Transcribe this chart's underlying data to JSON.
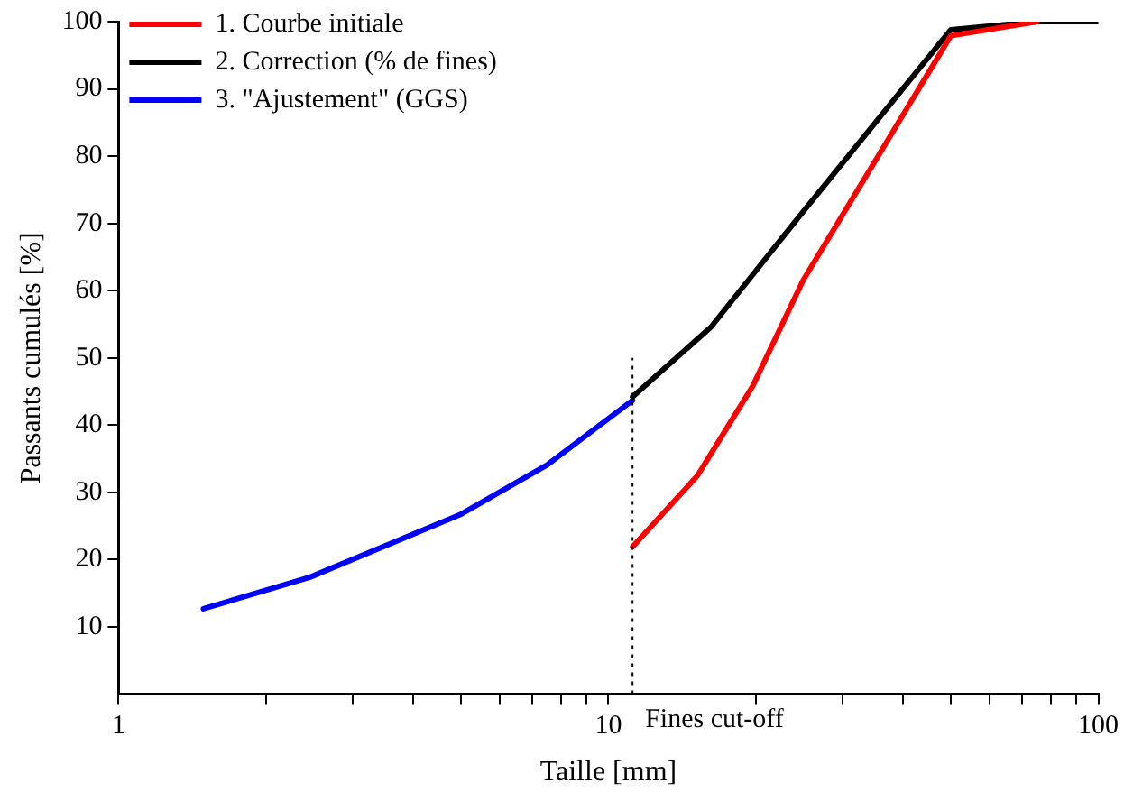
{
  "chart_data": {
    "type": "line",
    "xlabel": "Taille [mm]",
    "ylabel": "Passants cumulés [%]",
    "log": "x",
    "legend": "top left",
    "grid": false,
    "marker": "none",
    "line_style": "solid",
    "xlim": [
      1,
      100
    ],
    "xticks": [
      1,
      {
        "value": 2,
        "label": null
      },
      {
        "value": 3,
        "label": null
      },
      {
        "value": 4,
        "label": null
      },
      {
        "value": 5,
        "label": null
      },
      {
        "value": 6,
        "label": null
      },
      {
        "value": 7,
        "label": null
      },
      {
        "value": 8,
        "label": null
      },
      {
        "value": 9,
        "label": null
      },
      10,
      {
        "value": 20,
        "label": null
      },
      {
        "value": 30,
        "label": null
      },
      {
        "value": 40,
        "label": null
      },
      {
        "value": 50,
        "label": null
      },
      {
        "value": 60,
        "label": null
      },
      {
        "value": 70,
        "label": null
      },
      {
        "value": 80,
        "label": null
      },
      {
        "value": 90,
        "label": null
      },
      100
    ],
    "ylim": [
      0,
      100
    ],
    "yticks": [
      10,
      20,
      30,
      40,
      50,
      60,
      70,
      80,
      90,
      100
    ],
    "series": [
      {
        "name": "1. Courbe initiale",
        "color": "#ff0000",
        "x": [
          11.2,
          15.2,
          19.7,
          25,
          50,
          75
        ],
        "values": [
          21.9,
          32.5,
          45.8,
          61.6,
          97.9,
          100
        ]
      },
      {
        "name": "2. Correction (% de fines)",
        "color": "#000000",
        "x": [
          11.2,
          16.2,
          25,
          50,
          75,
          100
        ],
        "values": [
          44.2,
          54.6,
          71.8,
          98.8,
          100,
          100
        ]
      },
      {
        "name": "3. \"Ajustement\" (GGS)",
        "color": "#0000ff",
        "x": [
          1.49,
          2.46,
          4.98,
          7.5,
          11.2
        ],
        "values": [
          12.7,
          17.4,
          26.7,
          34.1,
          43.7
        ]
      }
    ],
    "ref_lines": [
      {
        "axis": "x",
        "value": 11.2,
        "label": "Fines cut-off",
        "color": "#000000",
        "line_style": "dotted"
      }
    ]
  }
}
